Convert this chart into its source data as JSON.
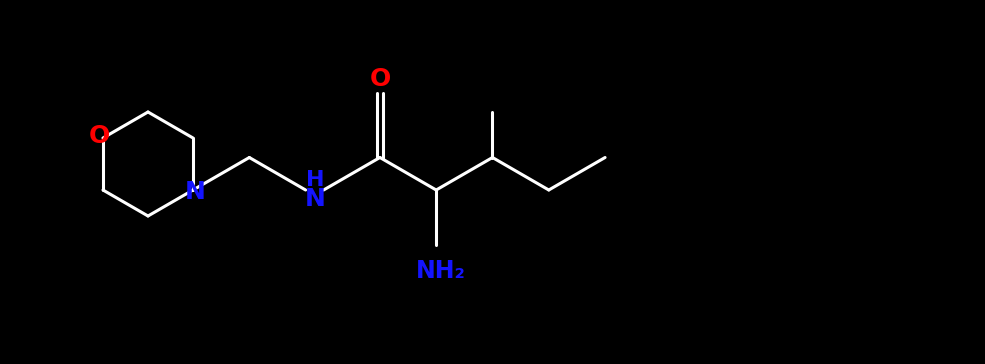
{
  "bg_color": "#000000",
  "bond_color": "#ffffff",
  "N_color": "#1414ff",
  "O_color": "#ff0000",
  "NH2_color": "#1414ff",
  "NH_color": "#1414ff",
  "label_N": "N",
  "label_O": "O",
  "label_NH": "H\nN",
  "label_NH2": "NH₂",
  "label_font_size": 16,
  "line_width": 2.2,
  "fig_width": 9.85,
  "fig_height": 3.64,
  "dpi": 100
}
